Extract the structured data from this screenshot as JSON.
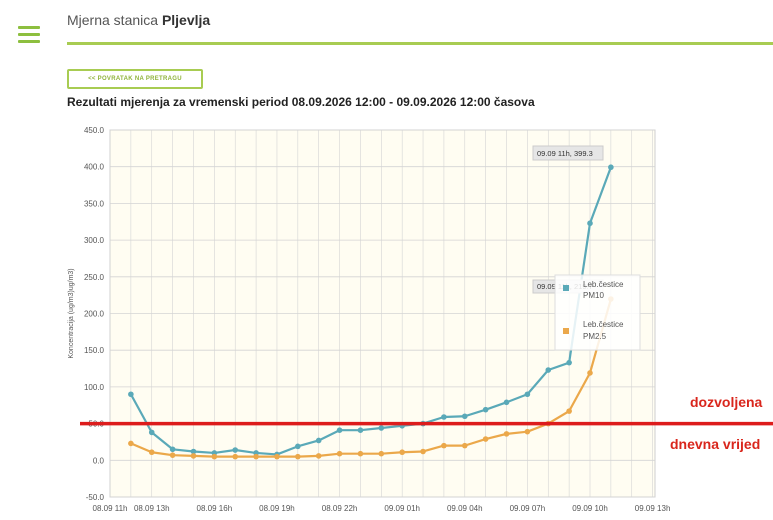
{
  "header": {
    "station_prefix": "Mjerna stanica",
    "station_name": "Pljevlja",
    "back_label": "<< POVRATAK NA PRETRAGU",
    "results_title": "Rezultati mjerenja za vremenski period 08.09.2026 12:00 - 09.09.2026 12:00 časova"
  },
  "annotations": {
    "line1": "dozvoljena",
    "line2": "dnevna vrijed"
  },
  "colors": {
    "pm10": "#5aa9b8",
    "pm25": "#eba84a",
    "limit": "#dd1c1c",
    "plot_bg": "#fffdf2",
    "grid": "#d4d4d4",
    "accent": "#a8cc52"
  },
  "chart_data": {
    "type": "line",
    "title": "",
    "xlabel": "",
    "ylabel": "Koncentracija (ug/m3)ug/m3)",
    "ylim": [
      -50,
      450
    ],
    "yticks": [
      "-50.0",
      "0.0",
      "50.0",
      "100.0",
      "150.0",
      "200.0",
      "250.0",
      "300.0",
      "350.0",
      "400.0",
      "450.0"
    ],
    "xlim": [
      11,
      34
    ],
    "xticks": [
      {
        "x": 11,
        "label": "08.09 11h"
      },
      {
        "x": 13,
        "label": "08.09 13h"
      },
      {
        "x": 16,
        "label": "08.09 16h"
      },
      {
        "x": 19,
        "label": "08.09 19h"
      },
      {
        "x": 22,
        "label": "08.09 22h"
      },
      {
        "x": 25,
        "label": "09.09 01h"
      },
      {
        "x": 28,
        "label": "09.09 04h"
      },
      {
        "x": 31,
        "label": "09.09 07h"
      },
      {
        "x": 34,
        "label": "09.09 10h"
      },
      {
        "x": 37,
        "label": "09.09 13h"
      }
    ],
    "limit_value": 50,
    "series": [
      {
        "name": "Leb.čestice PM10",
        "x": [
          12,
          13,
          14,
          15,
          16,
          17,
          18,
          19,
          20,
          21,
          22,
          23,
          24,
          25,
          26,
          27,
          28,
          29,
          30,
          31,
          32,
          33,
          34,
          35
        ],
        "y": [
          90,
          38,
          15,
          12,
          10,
          14,
          10,
          8,
          19,
          27,
          41,
          41,
          44,
          47,
          50,
          59,
          60,
          69,
          79,
          90,
          123,
          133,
          323,
          399.3
        ]
      },
      {
        "name": "Leb.čestice PM2.5",
        "x": [
          12,
          13,
          14,
          15,
          16,
          17,
          18,
          19,
          20,
          21,
          22,
          23,
          24,
          25,
          26,
          27,
          28,
          29,
          30,
          31,
          32,
          33,
          34,
          35
        ],
        "y": [
          23,
          11,
          7,
          6,
          5,
          5,
          5,
          5,
          5,
          6,
          9,
          9,
          9,
          11,
          12,
          20,
          20,
          29,
          36,
          39,
          50,
          67,
          119,
          219.7
        ]
      }
    ],
    "tooltips": [
      "09.09 11h, 399.3",
      "09.09 11h, 219.7"
    ],
    "legend": {
      "position": "right",
      "items": [
        {
          "line1": "Leb.čestice",
          "line2": "PM10"
        },
        {
          "line1": "Leb.čestice",
          "line2": "PM2.5"
        }
      ]
    }
  }
}
